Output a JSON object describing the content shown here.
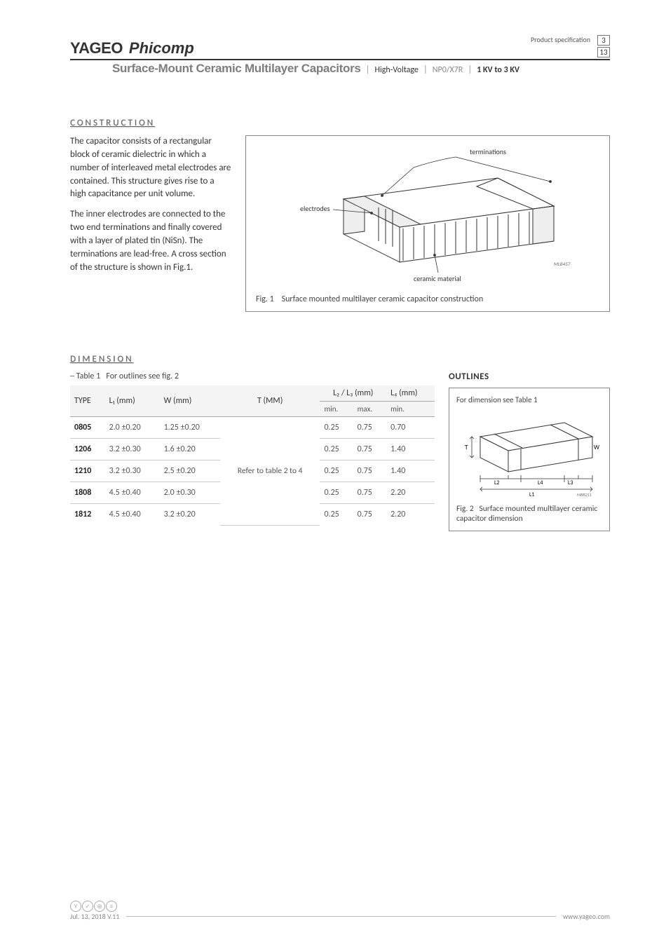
{
  "header": {
    "brand_main": "YAGEO",
    "brand_sub": "Phicomp",
    "prodspec": "Product specification",
    "page_current": "3",
    "page_total": "13",
    "title": "Surface-Mount Ceramic Multilayer Capacitors",
    "tag1": "High-Voltage",
    "tag2": "NP0/X7R",
    "tag3": "1 KV to 3 KV"
  },
  "sections": {
    "construction": {
      "heading": "CONSTRUCTION",
      "p1": "The capacitor consists of a rectangular block of ceramic dielectric in which a number of interleaved metal electrodes are contained. This structure gives rise to a high capacitance per unit volume.",
      "p2": "The inner electrodes are connected to the two end terminations and finally covered with a layer of plated tin (NiSn). The terminations are lead-free. A cross section of the structure is shown in Fig.1."
    },
    "dimension": {
      "heading": "DIMENSION",
      "outlines": "OUTLINES",
      "table_label_no": "Table 1",
      "table_label_txt": "For outlines see fig. 2"
    }
  },
  "fig1": {
    "no": "Fig. 1",
    "caption": "Surface mounted multilayer ceramic capacitor construction",
    "lbl_terminations": "terminations",
    "lbl_electrodes": "electrodes",
    "lbl_ceramic": "ceramic material",
    "code": "MLB457"
  },
  "fig2": {
    "no": "Fig. 2",
    "caption": "Surface mounted multilayer ceramic capacitor dimension",
    "topnote": "For dimension see Table 1",
    "code": "MBB211",
    "lbl_L1": "L1",
    "lbl_L2": "L2",
    "lbl_L3": "L3",
    "lbl_L4": "L4",
    "lbl_W": "W",
    "lbl_T": "T"
  },
  "table": {
    "headers": {
      "type": "TYPE",
      "l1": "L₁ (mm)",
      "w": "W (mm)",
      "t": "T (MM)",
      "l23": "L₂ / L₃ (mm)",
      "l4": "L₄ (mm)",
      "min": "min.",
      "max": "max."
    },
    "tmid": "Refer to table 2 to 4",
    "rows": [
      {
        "type": "0805",
        "l1": "2.0 ±0.20",
        "w": "1.25 ±0.20",
        "l2min": "0.25",
        "l2max": "0.75",
        "l4": "0.70"
      },
      {
        "type": "1206",
        "l1": "3.2 ±0.30",
        "w": "1.6 ±0.20",
        "l2min": "0.25",
        "l2max": "0.75",
        "l4": "1.40"
      },
      {
        "type": "1210",
        "l1": "3.2 ±0.30",
        "w": "2.5 ±0.20",
        "l2min": "0.25",
        "l2max": "0.75",
        "l4": "1.40"
      },
      {
        "type": "1808",
        "l1": "4.5 ±0.40",
        "w": "2.0 ±0.30",
        "l2min": "0.25",
        "l2max": "0.75",
        "l4": "2.20"
      },
      {
        "type": "1812",
        "l1": "4.5 ±0.40",
        "w": "3.2 ±0.20",
        "l2min": "0.25",
        "l2max": "0.75",
        "l4": "2.20"
      }
    ]
  },
  "footer": {
    "date": "Jul. 13, 2018 V.11",
    "url": "www.yageo.com"
  },
  "colors": {
    "text": "#333333",
    "muted": "#7d7d7d",
    "border": "#888888",
    "tablehead": "#f4f4f4"
  }
}
